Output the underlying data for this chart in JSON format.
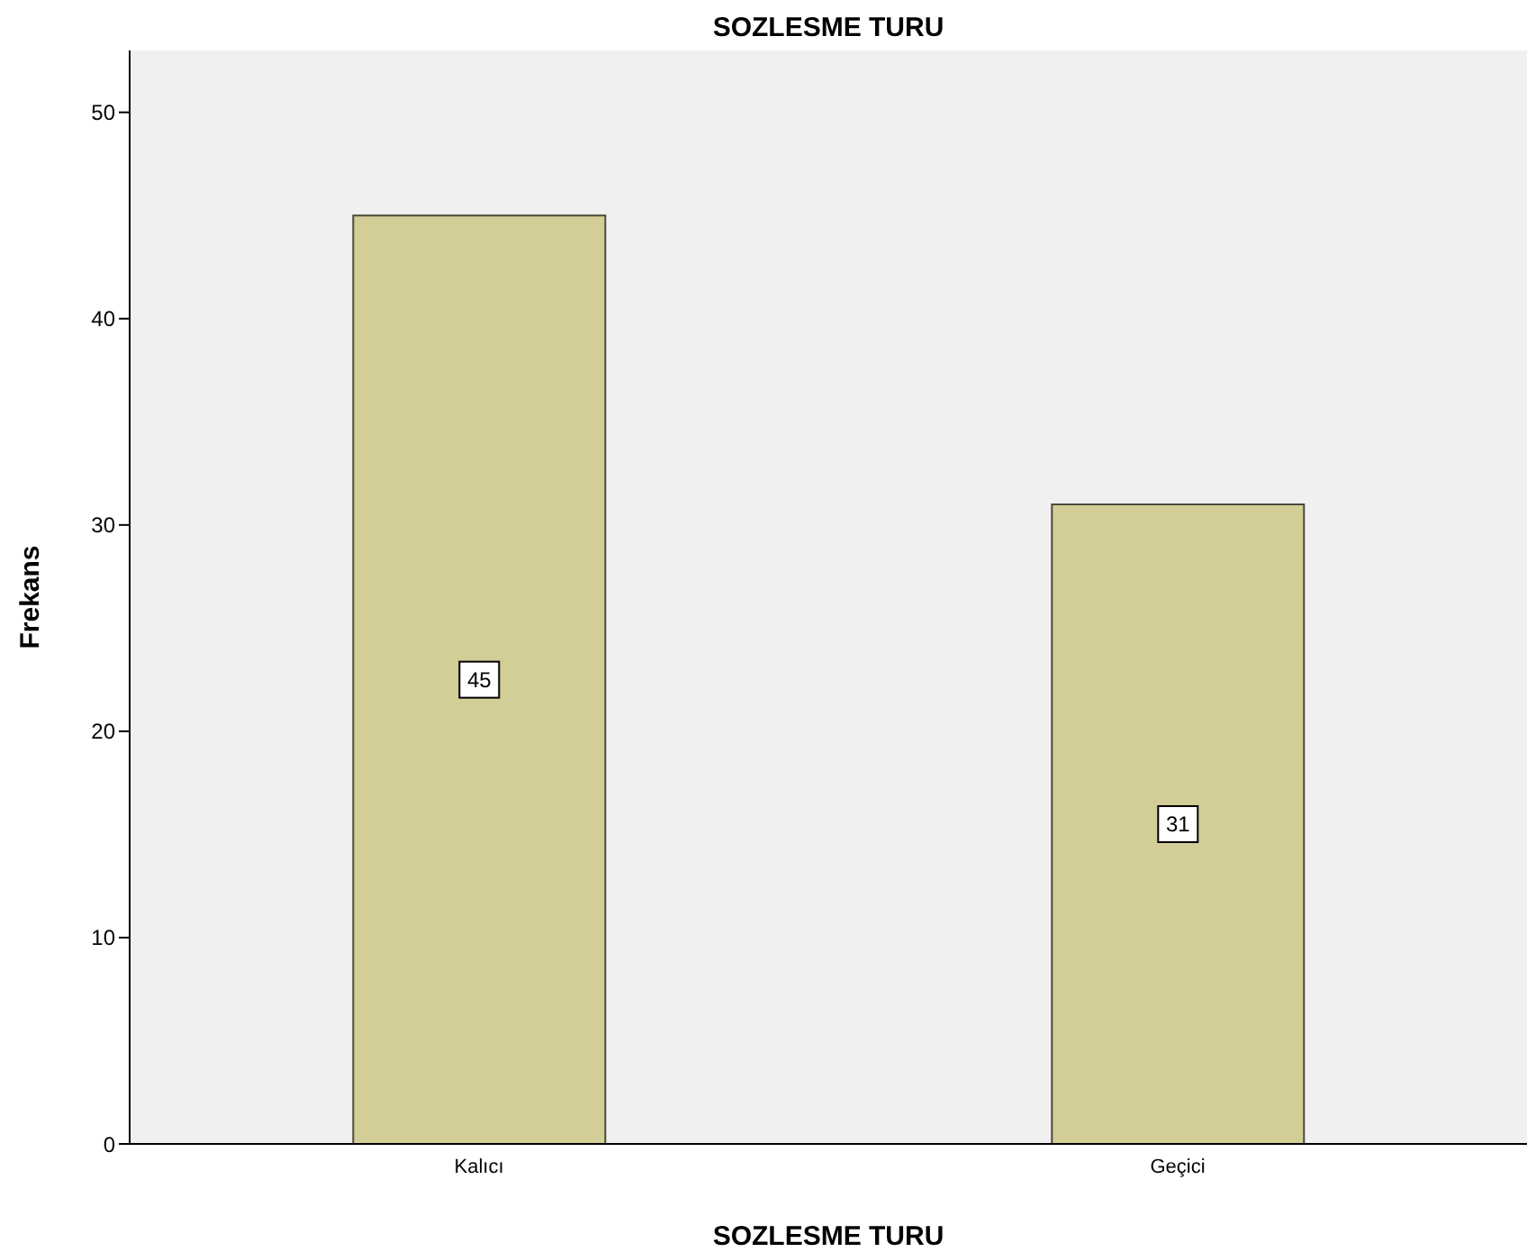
{
  "chart_data": {
    "type": "bar",
    "title": "SOZLESME TURU",
    "xlabel": "SOZLESME TURU",
    "ylabel": "Frekans",
    "categories": [
      "Kalıcı",
      "Geçici"
    ],
    "values": [
      45,
      31
    ],
    "color": "#d3cd98",
    "ylim": [
      0,
      53
    ],
    "yticks": [
      0,
      10,
      20,
      30,
      40,
      50
    ],
    "data_labels": true
  }
}
